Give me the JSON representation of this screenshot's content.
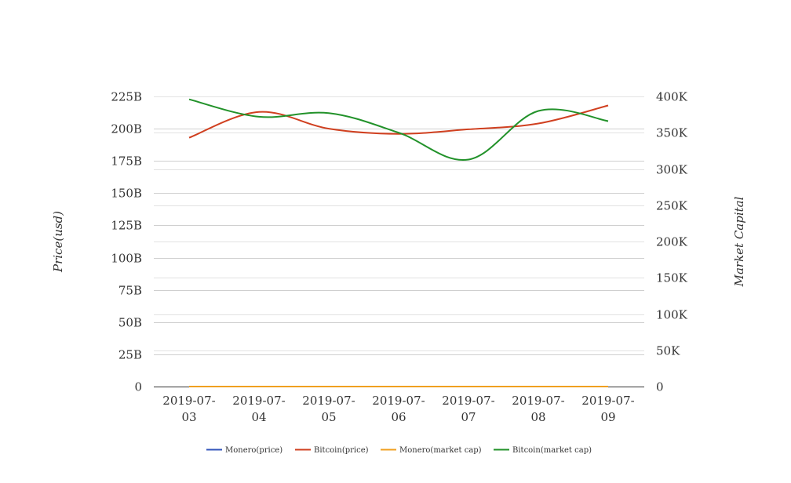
{
  "chart_data": {
    "type": "line",
    "categories": [
      "2019-07-03",
      "2019-07-04",
      "2019-07-05",
      "2019-07-06",
      "2019-07-07",
      "2019-07-08",
      "2019-07-09"
    ],
    "y_left": {
      "label": "Price(usd)",
      "min": 0,
      "max": 225000000000,
      "ticks": [
        0,
        25000000000,
        50000000000,
        75000000000,
        100000000000,
        125000000000,
        150000000000,
        175000000000,
        200000000000,
        225000000000
      ],
      "tick_labels": [
        "0",
        "25B",
        "50B",
        "75B",
        "100B",
        "125B",
        "150B",
        "175B",
        "200B",
        "225B"
      ]
    },
    "y_right": {
      "label": "Market Capital",
      "min": 0,
      "max": 400000,
      "ticks": [
        0,
        50000,
        100000,
        150000,
        200000,
        250000,
        300000,
        350000,
        400000
      ],
      "tick_labels": [
        "0",
        "50K",
        "100K",
        "150K",
        "200K",
        "250K",
        "300K",
        "350K",
        "400K"
      ]
    },
    "x_tick_lines": [
      [
        "2019-07-",
        "03"
      ],
      [
        "2019-07-",
        "04"
      ],
      [
        "2019-07-",
        "05"
      ],
      [
        "2019-07-",
        "06"
      ],
      [
        "2019-07-",
        "07"
      ],
      [
        "2019-07-",
        "08"
      ],
      [
        "2019-07-",
        "09"
      ]
    ],
    "grid": true,
    "legend_position": "bottom",
    "series": [
      {
        "name": "Monero(price)",
        "axis": "left",
        "color": "#3355bb",
        "values": [
          0,
          0,
          0,
          0,
          0,
          0,
          0
        ]
      },
      {
        "name": "Bitcoin(price)",
        "axis": "left",
        "color": "#d04020",
        "values": [
          193000000000,
          213000000000,
          200000000000,
          196000000000,
          199500000000,
          204000000000,
          218000000000
        ]
      },
      {
        "name": "Monero(market cap)",
        "axis": "right",
        "color": "#f0a020",
        "values": [
          0,
          0,
          0,
          0,
          0,
          0,
          0
        ]
      },
      {
        "name": "Bitcoin(market cap)",
        "axis": "right",
        "color": "#22922a",
        "values": [
          396000,
          372000,
          377000,
          350000,
          313000,
          380000,
          366000
        ]
      }
    ]
  }
}
